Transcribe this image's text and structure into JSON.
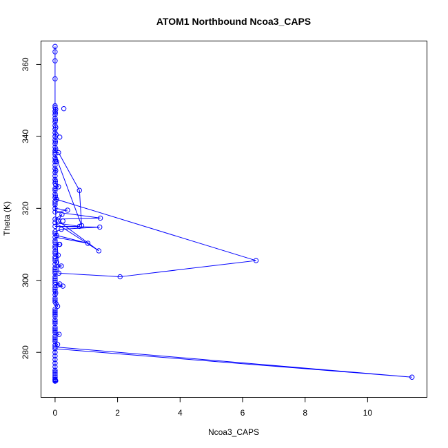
{
  "chart_data": {
    "type": "scatter",
    "title": "ATOM1 Northbound Ncoa3_CAPS",
    "xlabel": "Ncoa3_CAPS",
    "ylabel": "Theta (K)",
    "xlim": [
      -0.45,
      11.9
    ],
    "ylim": [
      267.5,
      366.5
    ],
    "x_ticks": [
      0,
      2,
      4,
      6,
      8,
      10
    ],
    "y_ticks": [
      280,
      300,
      320,
      340,
      360
    ],
    "grid": false,
    "legend": "none",
    "color": "#0000ff",
    "series": [
      {
        "points": [
          [
            0.0,
            365.0
          ],
          [
            0.0,
            363.5
          ],
          [
            0.0,
            361.0
          ],
          [
            0.0,
            356.0
          ],
          [
            0.0,
            348.5
          ],
          [
            0.0,
            348.0
          ],
          [
            0.02,
            347.5
          ],
          [
            0.0,
            347.0
          ],
          [
            0.01,
            346.5
          ],
          [
            0.0,
            346.0
          ],
          [
            0.0,
            345.0
          ],
          [
            0.01,
            344.5
          ],
          [
            0.0,
            344.0
          ],
          [
            0.0,
            343.0
          ],
          [
            0.02,
            342.5
          ],
          [
            0.0,
            342.0
          ],
          [
            0.0,
            341.0
          ],
          [
            0.03,
            340.5
          ],
          [
            0.0,
            340.0
          ],
          [
            0.0,
            339.0
          ],
          [
            0.01,
            338.5
          ],
          [
            0.0,
            338.0
          ],
          [
            0.0,
            337.0
          ],
          [
            0.02,
            336.5
          ],
          [
            0.0,
            336.0
          ],
          [
            0.0,
            335.5
          ],
          [
            0.11,
            335.5
          ],
          [
            0.78,
            325.0
          ],
          [
            0.85,
            315.2
          ],
          [
            0.0,
            335.0
          ],
          [
            0.0,
            334.0
          ],
          [
            0.01,
            333.5
          ],
          [
            0.0,
            333.0
          ],
          [
            0.0,
            332.0
          ],
          [
            0.0,
            331.0
          ],
          [
            0.02,
            330.5
          ],
          [
            0.0,
            330.0
          ],
          [
            0.0,
            329.0
          ],
          [
            0.0,
            328.0
          ],
          [
            0.01,
            327.5
          ],
          [
            0.0,
            327.0
          ],
          [
            0.11,
            326.0
          ],
          [
            0.0,
            325.5
          ],
          [
            0.0,
            325.0
          ],
          [
            0.0,
            324.0
          ],
          [
            0.01,
            323.5
          ],
          [
            0.0,
            323.0
          ],
          [
            0.05,
            322.5
          ],
          [
            6.43,
            305.5
          ],
          [
            2.08,
            301.0
          ],
          [
            0.12,
            302.0
          ],
          [
            0.0,
            321.5
          ],
          [
            0.0,
            321.0
          ],
          [
            0.0,
            320.0
          ],
          [
            0.4,
            319.5
          ],
          [
            0.0,
            319.0
          ],
          [
            1.45,
            317.3
          ],
          [
            0.0,
            317.0
          ],
          [
            0.22,
            318.3
          ],
          [
            0.1,
            316.5
          ],
          [
            1.4,
            308.2
          ],
          [
            0.0,
            316.0
          ],
          [
            0.78,
            315.0
          ],
          [
            0.0,
            315.0
          ],
          [
            1.43,
            314.8
          ],
          [
            0.2,
            314.2
          ],
          [
            0.0,
            313.5
          ],
          [
            0.0,
            313.0
          ],
          [
            0.05,
            312.5
          ],
          [
            1.05,
            310.3
          ],
          [
            0.0,
            312.0
          ],
          [
            0.0,
            311.0
          ],
          [
            0.0,
            310.5
          ],
          [
            0.13,
            310.0
          ],
          [
            0.0,
            309.5
          ],
          [
            0.0,
            309.0
          ],
          [
            0.0,
            308.0
          ],
          [
            0.0,
            307.5
          ],
          [
            0.1,
            307.0
          ],
          [
            0.0,
            306.0
          ],
          [
            0.0,
            305.5
          ],
          [
            0.05,
            305.0
          ],
          [
            0.0,
            304.5
          ],
          [
            0.2,
            304.0
          ],
          [
            0.0,
            303.5
          ],
          [
            0.0,
            303.0
          ],
          [
            0.0,
            302.5
          ],
          [
            0.0,
            302.0
          ],
          [
            0.0,
            301.0
          ],
          [
            0.0,
            300.5
          ],
          [
            0.0,
            300.0
          ],
          [
            0.0,
            299.5
          ],
          [
            0.15,
            299.0
          ],
          [
            0.0,
            298.8
          ],
          [
            0.25,
            298.4
          ],
          [
            0.0,
            298.0
          ],
          [
            0.0,
            297.5
          ],
          [
            0.0,
            297.0
          ],
          [
            0.02,
            296.5
          ],
          [
            0.0,
            296.0
          ],
          [
            0.0,
            295.0
          ],
          [
            0.0,
            294.5
          ],
          [
            0.0,
            294.0
          ],
          [
            0.03,
            293.5
          ],
          [
            0.08,
            292.8
          ],
          [
            0.0,
            292.0
          ],
          [
            0.0,
            291.5
          ],
          [
            0.0,
            291.0
          ],
          [
            0.0,
            290.5
          ],
          [
            0.0,
            290.0
          ],
          [
            0.0,
            289.0
          ],
          [
            0.0,
            288.5
          ],
          [
            0.0,
            288.0
          ],
          [
            0.0,
            287.0
          ],
          [
            0.0,
            286.5
          ],
          [
            0.0,
            286.0
          ],
          [
            0.0,
            285.5
          ],
          [
            0.13,
            285.0
          ],
          [
            0.0,
            284.5
          ],
          [
            0.0,
            284.0
          ],
          [
            0.0,
            283.5
          ],
          [
            0.0,
            283.0
          ],
          [
            0.08,
            282.2
          ],
          [
            0.0,
            282.0
          ],
          [
            0.0,
            281.5
          ],
          [
            11.42,
            273.1
          ],
          [
            0.0,
            281.0
          ],
          [
            0.0,
            280.0
          ],
          [
            0.0,
            279.0
          ],
          [
            0.0,
            278.0
          ],
          [
            0.0,
            277.0
          ],
          [
            0.0,
            276.0
          ],
          [
            0.0,
            275.0
          ],
          [
            0.0,
            274.5
          ],
          [
            0.0,
            274.0
          ],
          [
            0.0,
            273.5
          ],
          [
            0.0,
            273.0
          ],
          [
            0.0,
            272.5
          ],
          [
            0.0,
            272.3
          ],
          [
            0.0,
            272.0
          ],
          [
            0.02,
            272.1
          ]
        ],
        "extra_points": [
          [
            0.28,
            347.7
          ],
          [
            0.15,
            339.8
          ],
          [
            0.05,
            333.0
          ],
          [
            0.02,
            326.5
          ],
          [
            0.0,
            322.0
          ],
          [
            0.25,
            316.5
          ],
          [
            0.15,
            310.0
          ],
          [
            0.0,
            306.5
          ]
        ]
      }
    ]
  }
}
